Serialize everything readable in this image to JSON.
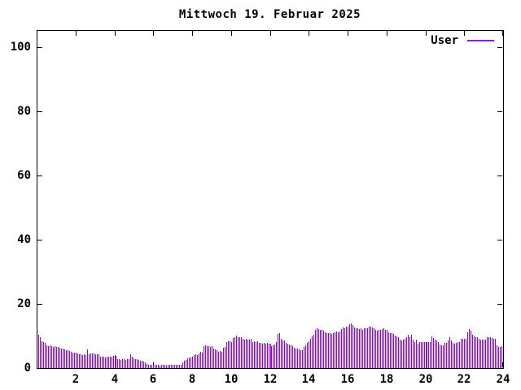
{
  "title": "Mittwoch 19. Februar 2025",
  "legend": {
    "label": "User"
  },
  "colors": {
    "series": "#9400D3",
    "axis": "#000000",
    "background": "#ffffff"
  },
  "chart_data": {
    "type": "bar",
    "style": "impulses",
    "title": "Mittwoch 19. Februar 2025",
    "series_name": "User",
    "xlabel": "",
    "ylabel": "",
    "xlim": [
      0,
      24
    ],
    "ylim": [
      0,
      105
    ],
    "x_ticks": [
      2,
      4,
      6,
      8,
      10,
      12,
      14,
      16,
      18,
      20,
      22,
      24
    ],
    "y_ticks": [
      0,
      20,
      40,
      60,
      80,
      100
    ],
    "grid": false,
    "legend_position": "top-right",
    "color": "#9400D3",
    "x_unit": "hour-of-day",
    "interval_minutes": 5,
    "first_sample_minute": 5,
    "values": [
      10.3,
      9.5,
      8.4,
      8.0,
      7.8,
      7.0,
      6.8,
      7.2,
      6.8,
      6.6,
      6.8,
      6.5,
      6.6,
      6.4,
      6.2,
      6.0,
      5.8,
      5.5,
      5.6,
      5.2,
      5.0,
      4.9,
      4.8,
      4.8,
      4.5,
      4.3,
      4.2,
      4.0,
      4.2,
      4.1,
      5.9,
      4.4,
      4.5,
      4.6,
      4.5,
      4.4,
      4.4,
      4.3,
      3.5,
      3.6,
      3.5,
      3.4,
      3.5,
      3.5,
      3.6,
      3.5,
      3.9,
      4.0,
      3.8,
      2.8,
      2.7,
      2.6,
      2.8,
      2.7,
      2.6,
      2.7,
      2.7,
      4.4,
      3.6,
      3.0,
      2.9,
      2.8,
      2.6,
      2.4,
      2.2,
      2.0,
      1.8,
      1.2,
      1.0,
      1.0,
      0.9,
      1.0,
      0.9,
      1.0,
      0.9,
      0.8,
      0.9,
      1.0,
      0.9,
      0.8,
      0.9,
      0.9,
      1.0,
      0.9,
      0.9,
      1.0,
      0.9,
      1.0,
      1.1,
      1.8,
      2.2,
      2.5,
      3.0,
      3.2,
      3.4,
      3.6,
      4.0,
      4.2,
      4.0,
      4.6,
      5.0,
      4.8,
      6.8,
      7.0,
      6.8,
      6.9,
      6.7,
      6.8,
      6.0,
      5.8,
      5.6,
      5.1,
      5.2,
      5.1,
      6.3,
      6.5,
      8.0,
      8.3,
      8.4,
      8.2,
      9.4,
      9.6,
      10.0,
      9.7,
      9.5,
      9.6,
      9.0,
      8.9,
      9.0,
      8.8,
      8.9,
      9.0,
      8.2,
      8.4,
      8.0,
      8.3,
      7.8,
      7.9,
      7.7,
      7.8,
      7.6,
      7.8,
      7.7,
      7.6,
      6.9,
      7.0,
      7.4,
      8.0,
      10.6,
      10.8,
      9.0,
      8.7,
      8.5,
      7.8,
      7.6,
      7.4,
      7.2,
      6.8,
      6.4,
      6.2,
      6.0,
      5.9,
      5.5,
      5.6,
      6.6,
      7.2,
      7.8,
      8.4,
      9.2,
      9.8,
      10.4,
      12.0,
      12.4,
      12.2,
      11.8,
      12.0,
      11.6,
      11.2,
      11.0,
      10.8,
      10.8,
      10.6,
      11.0,
      11.2,
      11.4,
      11.2,
      11.5,
      12.2,
      12.6,
      12.4,
      12.8,
      13.0,
      13.6,
      14.0,
      13.4,
      12.6,
      12.4,
      12.5,
      12.2,
      12.4,
      12.0,
      12.3,
      12.5,
      12.4,
      12.8,
      13.0,
      12.6,
      12.4,
      11.8,
      11.6,
      12.0,
      11.8,
      12.2,
      12.4,
      12.0,
      11.8,
      11.2,
      11.0,
      10.8,
      10.6,
      10.2,
      9.8,
      9.5,
      8.9,
      8.7,
      8.9,
      9.2,
      9.5,
      10.3,
      9.7,
      10.3,
      8.9,
      8.1,
      8.9,
      7.6,
      8.1,
      8.1,
      8.1,
      8.1,
      8.1,
      8.1,
      8.1,
      8.1,
      9.9,
      9.3,
      8.9,
      8.7,
      8.1,
      7.4,
      7.0,
      7.0,
      7.8,
      7.8,
      8.7,
      9.5,
      8.6,
      7.8,
      7.5,
      7.8,
      8.2,
      8.2,
      9.0,
      9.0,
      9.2,
      9.2,
      11.1,
      12.2,
      11.7,
      10.3,
      9.9,
      9.5,
      9.5,
      9.0,
      8.9,
      8.9,
      8.9,
      8.9,
      9.5,
      9.5,
      9.5,
      9.4,
      9.2,
      9.0,
      7.0,
      6.6,
      6.5,
      6.8
    ]
  }
}
